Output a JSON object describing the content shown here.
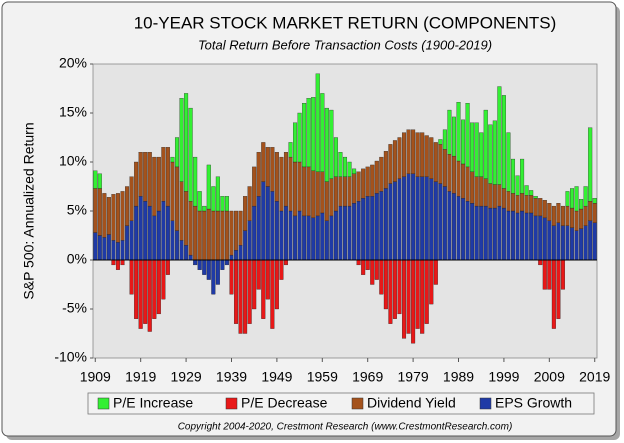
{
  "chart_data": {
    "type": "stacked-bar",
    "title": "10-YEAR STOCK MARKET RETURN (COMPONENTS)",
    "subtitle": "Total Return Before Transaction Costs (1900-2019)",
    "ylabel": "S&P 500: Annualized Return",
    "footnote": "Copyright 2004-2020, Crestmont Research (www.CrestmontResearch.com)",
    "x": [
      1909,
      1910,
      1911,
      1912,
      1913,
      1914,
      1915,
      1916,
      1917,
      1918,
      1919,
      1920,
      1921,
      1922,
      1923,
      1924,
      1925,
      1926,
      1927,
      1928,
      1929,
      1930,
      1931,
      1932,
      1933,
      1934,
      1935,
      1936,
      1937,
      1938,
      1939,
      1940,
      1941,
      1942,
      1943,
      1944,
      1945,
      1946,
      1947,
      1948,
      1949,
      1950,
      1951,
      1952,
      1953,
      1954,
      1955,
      1956,
      1957,
      1958,
      1959,
      1960,
      1961,
      1962,
      1963,
      1964,
      1965,
      1966,
      1967,
      1968,
      1969,
      1970,
      1971,
      1972,
      1973,
      1974,
      1975,
      1976,
      1977,
      1978,
      1979,
      1980,
      1981,
      1982,
      1983,
      1984,
      1985,
      1986,
      1987,
      1988,
      1989,
      1990,
      1991,
      1992,
      1993,
      1994,
      1995,
      1996,
      1997,
      1998,
      1999,
      2000,
      2001,
      2002,
      2003,
      2004,
      2005,
      2006,
      2007,
      2008,
      2009,
      2010,
      2011,
      2012,
      2013,
      2014,
      2015,
      2016,
      2017,
      2018,
      2019
    ],
    "xlim": [
      1908.5,
      2019.5
    ],
    "xticks": [
      1909,
      1919,
      1929,
      1939,
      1949,
      1959,
      1969,
      1979,
      1989,
      1999,
      2009,
      2019
    ],
    "ylim": [
      -10,
      20
    ],
    "yticks": [
      {
        "value": -10,
        "label": "-10%"
      },
      {
        "value": -5,
        "label": "-5%"
      },
      {
        "value": 0,
        "label": "0%"
      },
      {
        "value": 5,
        "label": "5%"
      },
      {
        "value": 10,
        "label": "10%"
      },
      {
        "value": 15,
        "label": "15%"
      },
      {
        "value": 20,
        "label": "20%"
      }
    ],
    "grid": false,
    "series": [
      {
        "name": "P/E Increase",
        "color": "#33f033",
        "values": [
          1.8,
          1.5,
          0,
          0,
          0,
          0,
          0,
          0,
          0,
          0,
          0,
          0,
          0,
          0,
          0,
          0,
          0,
          0.5,
          3,
          8.5,
          10,
          9.5,
          5,
          2,
          0.5,
          4.5,
          2.5,
          3.5,
          1.5,
          1.5,
          0,
          0,
          0,
          0,
          0,
          0,
          0,
          0,
          0,
          0,
          0,
          0,
          0,
          1.5,
          4,
          5,
          6.5,
          7,
          7.5,
          10,
          8,
          7.5,
          7,
          4,
          2.5,
          2,
          1.5,
          0.5,
          0,
          0,
          0,
          0,
          0,
          0,
          0,
          0,
          0,
          0,
          0,
          0,
          0,
          0,
          0,
          0,
          0,
          0,
          0.5,
          2,
          4.5,
          4,
          6,
          4.5,
          6.5,
          5,
          5.5,
          4.5,
          7,
          6,
          6.5,
          10,
          9.5,
          6,
          3.5,
          2,
          3.5,
          1,
          0.5,
          0.2,
          0,
          0,
          0,
          0,
          0,
          0,
          1.5,
          2,
          2.5,
          1,
          2,
          7.5,
          0.5
        ]
      },
      {
        "name": "P/E Decrease",
        "color": "#e81818",
        "values": [
          0,
          0,
          0,
          0,
          -0.5,
          -1,
          -0.5,
          0,
          -3.5,
          -6,
          -7,
          -6.5,
          -7.3,
          -6,
          -5.5,
          -4,
          -1.5,
          0,
          0,
          0,
          0,
          0,
          0,
          0,
          0,
          0,
          0,
          0,
          0,
          0,
          -3.5,
          -6.5,
          -7.5,
          -7.5,
          -6.5,
          -5,
          -3,
          -6,
          -4,
          -7,
          -5,
          -2,
          -0.5,
          0,
          0,
          0,
          0,
          0,
          0,
          0,
          0,
          0,
          0,
          0,
          0,
          0,
          0,
          0,
          -0.5,
          -1.5,
          -1,
          -2.5,
          -2,
          -3.5,
          -5,
          -6.5,
          -6,
          -5.5,
          -8,
          -7.5,
          -8.5,
          -7,
          -7.5,
          -6.5,
          -4.5,
          -2.5,
          0,
          0,
          0,
          0,
          0,
          0,
          0,
          0,
          0,
          0,
          0,
          0,
          0,
          0,
          0,
          0,
          0,
          0,
          0,
          0,
          0,
          0,
          -0.5,
          -3,
          -3,
          -7,
          -6,
          -3,
          0,
          0,
          0,
          0,
          0,
          0,
          0
        ]
      },
      {
        "name": "Dividend Yield",
        "color": "#a4521c",
        "values": [
          4.5,
          4.8,
          4.5,
          3.8,
          4.7,
          5,
          5,
          4,
          4.5,
          4.5,
          4.5,
          5,
          5.5,
          6,
          5.5,
          5.5,
          6,
          6,
          6.5,
          6,
          5.5,
          5.5,
          5.5,
          5,
          5,
          5.2,
          5,
          5,
          5,
          5,
          4.5,
          4,
          3.5,
          3.5,
          3.5,
          4,
          4.5,
          4,
          4,
          4.5,
          5,
          5.5,
          5.5,
          5.5,
          5.5,
          5,
          5,
          5,
          4.8,
          4.5,
          4.2,
          4,
          3.8,
          3.5,
          3,
          3,
          3,
          3,
          3,
          3,
          3,
          3.2,
          3.3,
          3.5,
          3.8,
          4,
          4.2,
          4.2,
          4.5,
          4.5,
          4.5,
          4.5,
          4.5,
          4.2,
          4.2,
          4,
          4,
          3.8,
          3.8,
          3.8,
          3.6,
          3.5,
          3.5,
          3.2,
          3,
          3,
          2.8,
          2.5,
          2.4,
          2.2,
          2,
          2,
          1.8,
          1.8,
          1.8,
          1.8,
          1.8,
          1.8,
          1.8,
          1.8,
          1.8,
          2,
          2,
          2,
          2,
          2,
          2,
          2,
          2,
          2,
          2
        ]
      },
      {
        "name": "EPS Growth",
        "color": "#1f3aa6",
        "values": [
          2.8,
          2.5,
          2.3,
          2.6,
          2,
          1.8,
          2,
          3.5,
          4,
          5.5,
          6.5,
          6,
          5.5,
          4.5,
          5,
          6,
          5.5,
          4,
          3,
          2,
          1.5,
          0.5,
          -0.5,
          -1,
          -1.5,
          -2,
          -3.5,
          -2.5,
          -1,
          -0.5,
          0.5,
          1,
          1.5,
          3,
          4,
          5.5,
          6.5,
          8,
          7.5,
          7,
          6,
          5,
          5.5,
          5,
          4.5,
          5,
          4.5,
          4.5,
          4.3,
          4.5,
          4.8,
          4,
          4.5,
          5,
          5.5,
          5.5,
          5.5,
          5.8,
          6,
          6.3,
          6.5,
          6.5,
          6.8,
          7,
          7.3,
          7.8,
          8,
          8.3,
          8.5,
          8.8,
          8.8,
          8.5,
          8.5,
          8.5,
          8.3,
          8,
          7.8,
          7.5,
          7,
          6.8,
          6.5,
          6.3,
          6,
          5.8,
          5.5,
          5.5,
          5.5,
          5.3,
          5.3,
          5.5,
          5.3,
          5,
          5,
          4.8,
          5,
          4.8,
          4.8,
          4.5,
          4.5,
          4.3,
          4,
          3.5,
          3.8,
          3.5,
          3.5,
          3.3,
          3,
          3.2,
          3.5,
          4,
          3.8
        ]
      }
    ]
  }
}
